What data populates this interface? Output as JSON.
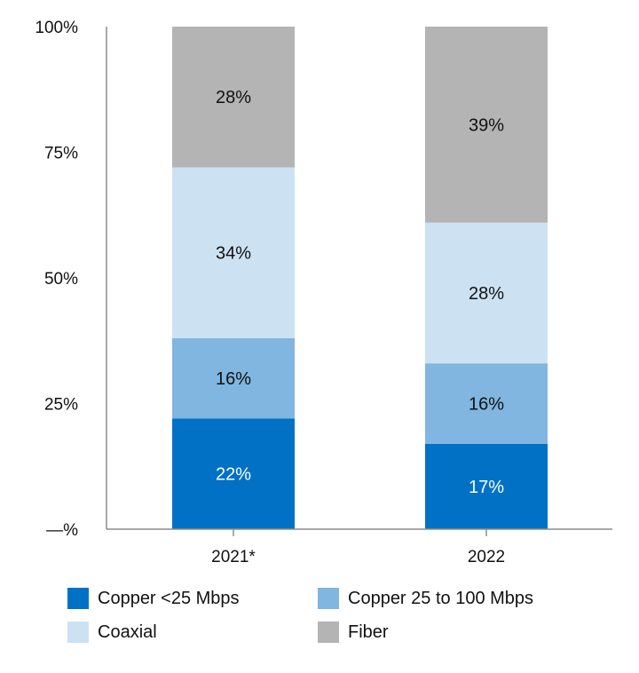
{
  "chart_data": {
    "type": "bar",
    "stacked": true,
    "categories": [
      "2021*",
      "2022"
    ],
    "series": [
      {
        "name": "Copper <25 Mbps",
        "values": [
          22,
          17
        ],
        "labels": [
          "22%",
          "17%"
        ],
        "color": "#0071C5",
        "label_color": "#ffffff"
      },
      {
        "name": "Copper 25 to 100 Mbps",
        "values": [
          16,
          16
        ],
        "labels": [
          "16%",
          "16%"
        ],
        "color": "#80B6E0",
        "label_color": "#111111"
      },
      {
        "name": "Coaxial",
        "values": [
          34,
          28
        ],
        "labels": [
          "34%",
          "28%"
        ],
        "color": "#CCE2F3",
        "label_color": "#111111"
      },
      {
        "name": "Fiber",
        "values": [
          28,
          39
        ],
        "labels": [
          "28%",
          "39%"
        ],
        "color": "#B4B4B4",
        "label_color": "#111111"
      }
    ],
    "y_ticks": [
      {
        "value": 0,
        "label": "—%"
      },
      {
        "value": 25,
        "label": "25%"
      },
      {
        "value": 50,
        "label": "50%"
      },
      {
        "value": 75,
        "label": "75%"
      },
      {
        "value": 100,
        "label": "100%"
      }
    ],
    "ylim": [
      0,
      100
    ],
    "title": "",
    "xlabel": "",
    "ylabel": "",
    "grid": false,
    "legend_position": "bottom"
  }
}
